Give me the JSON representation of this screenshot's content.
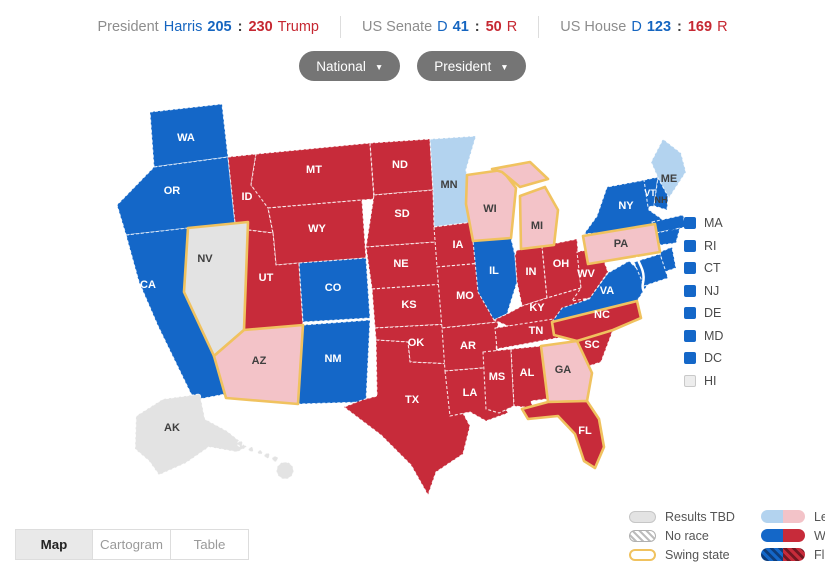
{
  "header": {
    "president": {
      "label": "President",
      "dem_name": "Harris",
      "dem_value": "205",
      "separator": ":",
      "rep_value": "230",
      "rep_name": "Trump"
    },
    "senate": {
      "label": "US Senate",
      "dem_name": "D",
      "dem_value": "41",
      "separator": ":",
      "rep_value": "50",
      "rep_name": "R"
    },
    "house": {
      "label": "US House",
      "dem_name": "D",
      "dem_value": "123",
      "separator": ":",
      "rep_value": "169",
      "rep_name": "R"
    }
  },
  "filters": {
    "region_dropdown": "National",
    "race_dropdown": "President",
    "caret_icon": "▼"
  },
  "map": {
    "states": [
      {
        "code": "WA",
        "status": "win_d"
      },
      {
        "code": "OR",
        "status": "win_d"
      },
      {
        "code": "CA",
        "status": "win_d"
      },
      {
        "code": "NV",
        "status": "tbd",
        "swing": true
      },
      {
        "code": "ID",
        "status": "win_r"
      },
      {
        "code": "MT",
        "status": "win_r"
      },
      {
        "code": "WY",
        "status": "win_r"
      },
      {
        "code": "UT",
        "status": "win_r"
      },
      {
        "code": "CO",
        "status": "win_d"
      },
      {
        "code": "AZ",
        "status": "lead_r",
        "swing": true
      },
      {
        "code": "NM",
        "status": "win_d"
      },
      {
        "code": "ND",
        "status": "win_r"
      },
      {
        "code": "SD",
        "status": "win_r"
      },
      {
        "code": "NE",
        "status": "win_r"
      },
      {
        "code": "KS",
        "status": "win_r"
      },
      {
        "code": "OK",
        "status": "win_r"
      },
      {
        "code": "TX",
        "status": "win_r"
      },
      {
        "code": "MN",
        "status": "lead_d"
      },
      {
        "code": "IA",
        "status": "win_r"
      },
      {
        "code": "MO",
        "status": "win_r"
      },
      {
        "code": "AR",
        "status": "win_r"
      },
      {
        "code": "LA",
        "status": "win_r"
      },
      {
        "code": "WI",
        "status": "lead_r",
        "swing": true
      },
      {
        "code": "MI",
        "status": "lead_r",
        "swing": true,
        "parts": [
          "MIUP",
          "MI"
        ]
      },
      {
        "code": "IL",
        "status": "win_d"
      },
      {
        "code": "IN",
        "status": "win_r"
      },
      {
        "code": "OH",
        "status": "win_r"
      },
      {
        "code": "KY",
        "status": "win_r"
      },
      {
        "code": "TN",
        "status": "win_r"
      },
      {
        "code": "MS",
        "status": "win_r"
      },
      {
        "code": "AL",
        "status": "win_r"
      },
      {
        "code": "GA",
        "status": "lead_r",
        "swing": true
      },
      {
        "code": "FL",
        "status": "win_r",
        "swing": true
      },
      {
        "code": "SC",
        "status": "win_r"
      },
      {
        "code": "NC",
        "status": "win_r",
        "swing": true
      },
      {
        "code": "VA",
        "status": "win_d"
      },
      {
        "code": "WV",
        "status": "win_r"
      },
      {
        "code": "PA",
        "status": "lead_r",
        "swing": true
      },
      {
        "code": "NY",
        "status": "win_d"
      },
      {
        "code": "VT",
        "status": "win_d"
      },
      {
        "code": "NH",
        "status": "win_d",
        "label_dark": true
      },
      {
        "code": "ME",
        "status": "lead_d"
      },
      {
        "code": "MA",
        "status": "win_d"
      },
      {
        "code": "CT",
        "status": "win_d"
      },
      {
        "code": "NJ",
        "status": "win_d"
      },
      {
        "code": "MD",
        "status": "win_d"
      },
      {
        "code": "AK",
        "status": "tbd"
      },
      {
        "code": "HI",
        "status": "tbd"
      }
    ],
    "small_states": [
      {
        "code": "MA",
        "status": "win_d"
      },
      {
        "code": "RI",
        "status": "win_d"
      },
      {
        "code": "CT",
        "status": "win_d"
      },
      {
        "code": "NJ",
        "status": "win_d"
      },
      {
        "code": "DE",
        "status": "win_d"
      },
      {
        "code": "MD",
        "status": "win_d"
      },
      {
        "code": "DC",
        "status": "win_d"
      },
      {
        "code": "HI",
        "status": "tbd"
      }
    ]
  },
  "legend": {
    "left": [
      {
        "label": "Results TBD"
      },
      {
        "label": "No race"
      },
      {
        "label": "Swing state"
      }
    ],
    "right": [
      {
        "label": "Lead"
      },
      {
        "label": "Win"
      },
      {
        "label": "Flip"
      }
    ]
  },
  "tabs": [
    {
      "label": "Map",
      "active": true
    },
    {
      "label": "Cartogram",
      "active": false
    },
    {
      "label": "Table",
      "active": false
    }
  ],
  "colors": {
    "win_d": "#1467c8",
    "win_r": "#c72b3a",
    "lead_d": "#b3d3ef",
    "lead_r": "#f3c3c8",
    "tbd": "#e3e3e3",
    "swing_border": "#f0c25f",
    "dem_text": "#1565c0",
    "rep_text": "#c62832"
  }
}
